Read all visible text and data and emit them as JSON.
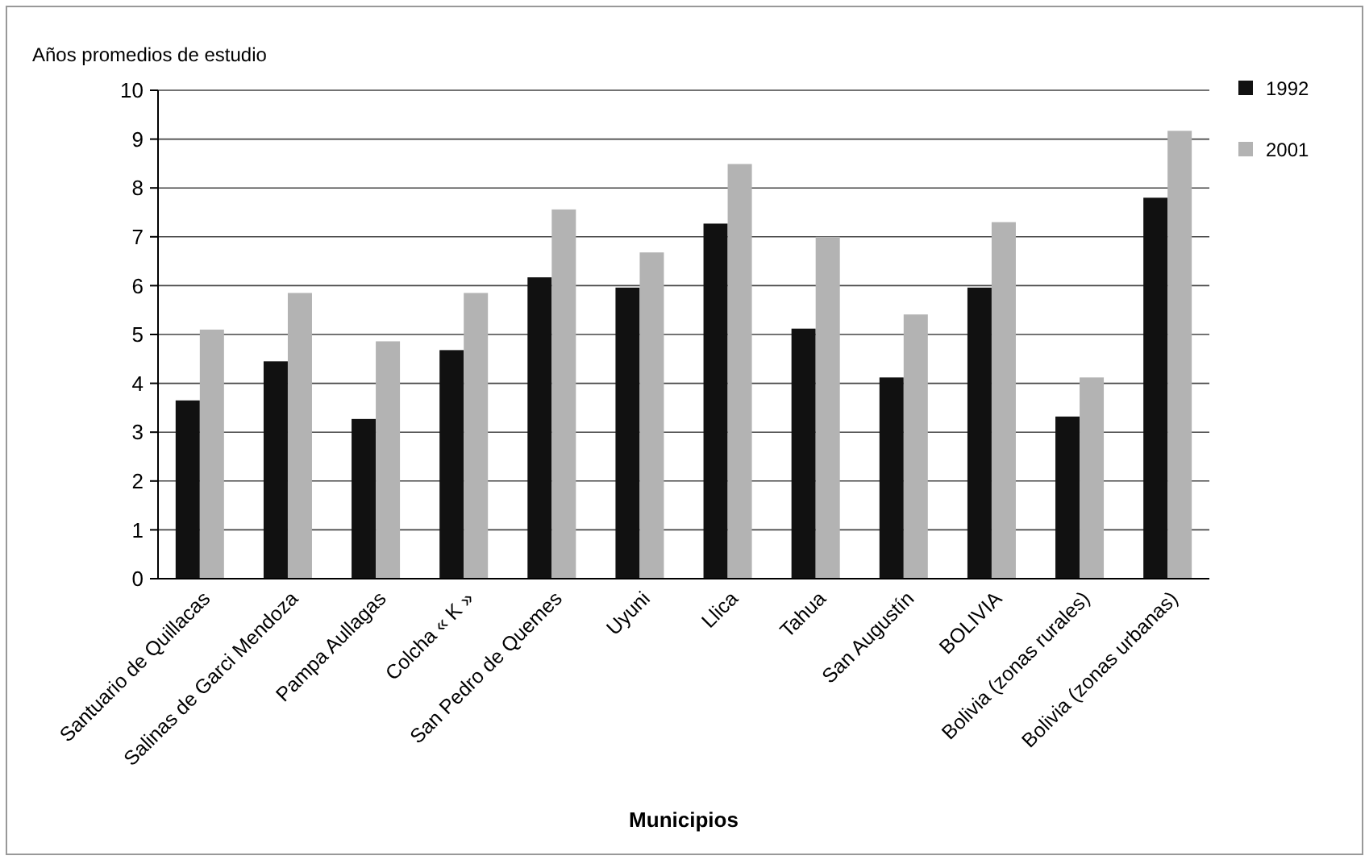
{
  "chart_data": {
    "type": "bar",
    "ylabel": "Años promedios de estudio",
    "xlabel": "Municipios",
    "categories": [
      "Santuario de Quillacas",
      "Salinas de Garci Mendoza",
      "Pampa Aullagas",
      "Colcha « K »",
      "San Pedro de Quemes",
      "Uyuni",
      "Llica",
      "Tahua",
      "San Augustín",
      "BOLIVIA",
      "Bolivia (zonas rurales)",
      "Bolivia (zonas urbanas)"
    ],
    "series": [
      {
        "name": "1992",
        "color": "#111111",
        "values": [
          3.65,
          4.45,
          3.27,
          4.68,
          6.17,
          5.96,
          7.27,
          5.12,
          4.12,
          5.96,
          3.32,
          7.8
        ]
      },
      {
        "name": "2001",
        "color": "#b3b3b3",
        "values": [
          5.1,
          5.85,
          4.86,
          5.85,
          7.56,
          6.68,
          8.49,
          7.0,
          5.41,
          7.3,
          4.12,
          9.17
        ]
      }
    ],
    "ylim": [
      0,
      10
    ],
    "yticks": [
      0,
      1,
      2,
      3,
      4,
      5,
      6,
      7,
      8,
      9,
      10
    ],
    "grid": "y",
    "legend": "top right"
  }
}
